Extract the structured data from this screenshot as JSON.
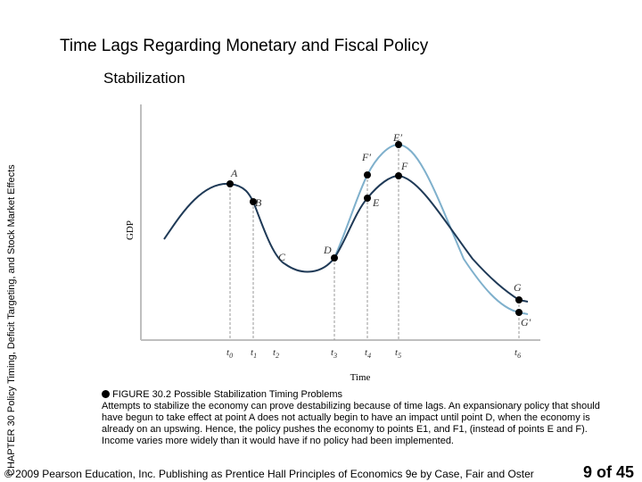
{
  "slide": {
    "title": "Time Lags Regarding Monetary and Fiscal Policy",
    "subtitle": "Stabilization",
    "side_label": "CHAPTER 30 Policy Timing, Deficit Targeting, and Stock Market Effects"
  },
  "figure": {
    "axis_y": "GDP",
    "axis_x": "Time",
    "ticks": [
      "t0",
      "t1",
      "t2",
      "t3",
      "t4",
      "t5",
      "t6"
    ],
    "points": [
      "A",
      "B",
      "C",
      "D",
      "E",
      "F",
      "E′",
      "F′",
      "G",
      "G′"
    ],
    "colors": {
      "base": "#1f3a57",
      "alt": "#7fb0cc",
      "guide": "#9a9a9a",
      "axis": "#bfbfbf"
    }
  },
  "caption": {
    "heading": "FIGURE 30.2 Possible Stabilization Timing Problems",
    "body": "Attempts to stabilize the economy can prove destabilizing because of time lags. An expansionary policy that should have begun to take effect at point A does not actually begin to have an impact until point D, when the economy is already on an upswing. Hence, the policy pushes the economy to points E1, and F1, (instead of points E and F). Income varies more widely than it would have if no policy had been implemented."
  },
  "footer": {
    "copyright": "© 2009 Pearson Education, Inc. Publishing as Prentice Hall  Principles of Economics 9e by Case, Fair and Oster",
    "page": "9 of 45"
  }
}
